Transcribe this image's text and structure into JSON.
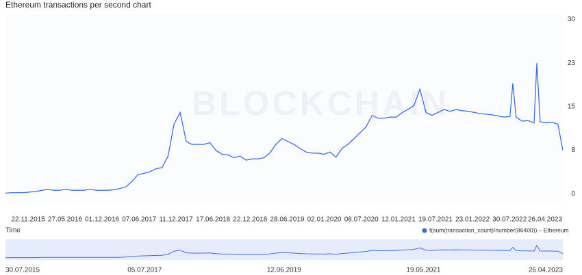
{
  "chart_data": {
    "type": "line",
    "title": "Ethereum transactions per second chart",
    "watermark": "BLOCKCHAIN",
    "x_label": "Time",
    "x": [
      "30.07.2015",
      "01.09.2015",
      "01.10.2015",
      "01.11.2015",
      "01.12.2015",
      "01.01.2016",
      "01.02.2016",
      "01.03.2016",
      "01.04.2016",
      "01.05.2016",
      "01.06.2016",
      "01.07.2016",
      "01.08.2016",
      "01.09.2016",
      "01.10.2016",
      "01.11.2016",
      "01.12.2016",
      "01.01.2017",
      "01.02.2017",
      "01.03.2017",
      "01.04.2017",
      "01.05.2017",
      "01.06.2017",
      "01.07.2017",
      "01.08.2017",
      "01.09.2017",
      "01.10.2017",
      "01.11.2017",
      "01.12.2017",
      "01.01.2018",
      "01.02.2018",
      "01.03.2018",
      "01.04.2018",
      "01.05.2018",
      "01.06.2018",
      "01.07.2018",
      "01.08.2018",
      "01.09.2018",
      "01.10.2018",
      "01.11.2018",
      "01.12.2018",
      "01.01.2019",
      "01.02.2019",
      "01.03.2019",
      "01.04.2019",
      "01.05.2019",
      "01.06.2019",
      "01.07.2019",
      "01.08.2019",
      "01.09.2019",
      "01.10.2019",
      "01.11.2019",
      "01.12.2019",
      "01.01.2020",
      "01.02.2020",
      "01.03.2020",
      "01.04.2020",
      "01.05.2020",
      "01.06.2020",
      "01.07.2020",
      "01.08.2020",
      "01.09.2020",
      "01.10.2020",
      "01.11.2020",
      "01.12.2020",
      "01.01.2021",
      "01.02.2021",
      "01.03.2021",
      "01.04.2021",
      "01.05.2021",
      "01.06.2021",
      "01.07.2021",
      "01.08.2021",
      "01.09.2021",
      "01.10.2021",
      "01.11.2021",
      "01.12.2021",
      "01.01.2022",
      "01.02.2022",
      "01.03.2022",
      "01.04.2022",
      "01.05.2022",
      "01.06.2022",
      "01.07.2022",
      "01.08.2022",
      "15.08.2022",
      "01.09.2022",
      "01.10.2022",
      "01.11.2022",
      "01.12.2022",
      "15.12.2022",
      "01.01.2023",
      "01.02.2023",
      "01.03.2023",
      "01.04.2023",
      "26.04.2023"
    ],
    "series": [
      {
        "name": "f(sum(transaction_count)/number(86400)) – Ethereum",
        "color": "#3b6fe0",
        "values": [
          0.1,
          0.2,
          0.2,
          0.2,
          0.3,
          0.4,
          0.6,
          0.8,
          0.6,
          0.6,
          0.8,
          0.6,
          0.6,
          0.6,
          0.8,
          0.6,
          0.6,
          0.6,
          0.7,
          0.9,
          1.2,
          2.1,
          3.3,
          3.5,
          3.8,
          4.3,
          4.5,
          6.5,
          12,
          14,
          9,
          8.5,
          8.5,
          8.5,
          8.8,
          7.5,
          6.8,
          6.7,
          6.2,
          6.5,
          5.8,
          6,
          6,
          6.2,
          7,
          8.5,
          9.5,
          9,
          8.5,
          7.8,
          7.2,
          7,
          7,
          6.8,
          7.2,
          6.3,
          7.8,
          8.5,
          9.5,
          10.5,
          11.5,
          13.5,
          13,
          13,
          13.2,
          13.2,
          14,
          14.5,
          15.2,
          18,
          14,
          13.5,
          14,
          14.5,
          14.2,
          14.5,
          14.3,
          14.2,
          14,
          13.8,
          13.7,
          13.6,
          13.4,
          13.2,
          13.3,
          19,
          13.2,
          12.5,
          12.6,
          12.2,
          22.5,
          12.4,
          12.2,
          12.3,
          12,
          7.5
        ]
      }
    ],
    "xlim": [
      "30.07.2015",
      "26.04.2023"
    ],
    "xticks": [
      "22.11.2015",
      "27.05.2016",
      "01.12.2016",
      "07.06.2017",
      "11.12.2017",
      "17.06.2018",
      "22.12.2018",
      "28.06.2019",
      "02.01.2020",
      "08.07.2020",
      "12.01.2021",
      "19.07.2021",
      "23.01.2022",
      "30.07.2022",
      "26.04.2023"
    ],
    "navigator_ticks": [
      "30.07.2015",
      "05.07.2017",
      "12.06.2019",
      "19.05.2021",
      "26.04.2023"
    ],
    "ylim": [
      -1.5,
      31
    ],
    "yticks": [
      0,
      {
        "value": 7.5,
        "label": "8"
      },
      15,
      {
        "value": 22.5,
        "label": "23"
      },
      30
    ],
    "grid": false
  }
}
